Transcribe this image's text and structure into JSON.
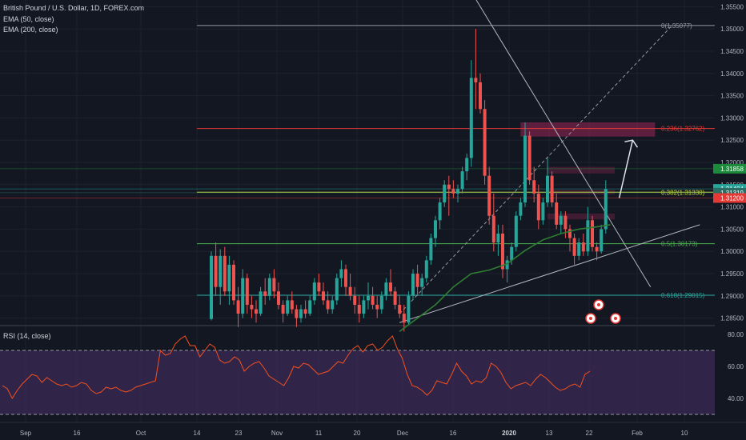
{
  "legend": {
    "symbol": "British Pound / U.S. Dollar, 1D, FOREX.com",
    "ema50": "EMA (50, close)",
    "ema200": "EMA (200, close)",
    "rsi": "RSI (14, close)"
  },
  "colors": {
    "background": "#131722",
    "up": "#26a69a",
    "down": "#ef5350",
    "ema50": "#2e7d32",
    "fib_red": "#e53935",
    "fib_green": "#4caf50",
    "fib_yellow": "#cddc39",
    "rsi_line": "#f4511e",
    "rsi_band": "#3b2a57",
    "axis_text": "#b2b5be"
  },
  "chart_data": {
    "type": "candlestick",
    "price_axis": {
      "ticks": [
        "1.35500",
        "1.35000",
        "1.34500",
        "1.34000",
        "1.33500",
        "1.33000",
        "1.32500",
        "1.32000",
        "1.31500",
        "1.31000",
        "1.30500",
        "1.30000",
        "1.29500",
        "1.29000",
        "1.28500"
      ],
      "range": [
        1.2835,
        1.3565
      ]
    },
    "x_axis": {
      "ticks": [
        "Sep",
        "16",
        "Oct",
        "14",
        "23",
        "Nov",
        "11",
        "20",
        "Dec",
        "16",
        "2020",
        "13",
        "22",
        "Feb",
        "10"
      ]
    },
    "price_badges": [
      {
        "value": "1.31858",
        "price": 1.31858,
        "color": "#1b8a3a"
      },
      {
        "value": "1.31404",
        "price": 1.31404,
        "color": "#26a69a"
      },
      {
        "value": "1.31319",
        "price": 1.31319,
        "color": "#2b6e66"
      },
      {
        "value": "1.31200",
        "price": 1.312,
        "color": "#e53935"
      }
    ],
    "fib_levels": [
      {
        "label": "0(1.35077)",
        "price": 1.35077,
        "color": "#9598a1"
      },
      {
        "label": "0.236(1.32762)",
        "price": 1.32762,
        "color": "#e53935"
      },
      {
        "label": "0.382(1.31330)",
        "price": 1.3133,
        "color": "#cddc39"
      },
      {
        "label": "0.5(1.30173)",
        "price": 1.30173,
        "color": "#4caf50"
      },
      {
        "label": "0.618(1.29015)",
        "price": 1.29015,
        "color": "#26a69a"
      }
    ],
    "candles": [
      [
        1.2848,
        1.3,
        1.2845,
        1.299
      ],
      [
        1.299,
        1.302,
        1.29,
        1.292
      ],
      [
        1.292,
        1.3005,
        1.288,
        1.299
      ],
      [
        1.299,
        1.301,
        1.29,
        1.291
      ],
      [
        1.291,
        1.299,
        1.288,
        1.297
      ],
      [
        1.297,
        1.298,
        1.288,
        1.289
      ],
      [
        1.289,
        1.292,
        1.283,
        1.286
      ],
      [
        1.286,
        1.296,
        1.285,
        1.294
      ],
      [
        1.294,
        1.295,
        1.286,
        1.288
      ],
      [
        1.288,
        1.29,
        1.285,
        1.287
      ],
      [
        1.287,
        1.289,
        1.284,
        1.286
      ],
      [
        1.286,
        1.292,
        1.2855,
        1.291
      ],
      [
        1.291,
        1.294,
        1.288,
        1.29
      ],
      [
        1.29,
        1.295,
        1.289,
        1.294
      ],
      [
        1.294,
        1.296,
        1.2895,
        1.291
      ],
      [
        1.291,
        1.293,
        1.287,
        1.288
      ],
      [
        1.288,
        1.289,
        1.284,
        1.286
      ],
      [
        1.286,
        1.29,
        1.2855,
        1.289
      ],
      [
        1.289,
        1.291,
        1.286,
        1.287
      ],
      [
        1.287,
        1.288,
        1.283,
        1.285
      ],
      [
        1.285,
        1.288,
        1.284,
        1.287
      ],
      [
        1.287,
        1.289,
        1.285,
        1.286
      ],
      [
        1.286,
        1.29,
        1.2855,
        1.289
      ],
      [
        1.289,
        1.294,
        1.288,
        1.293
      ],
      [
        1.293,
        1.295,
        1.29,
        1.291
      ],
      [
        1.291,
        1.293,
        1.288,
        1.289
      ],
      [
        1.289,
        1.291,
        1.286,
        1.287
      ],
      [
        1.287,
        1.29,
        1.286,
        1.289
      ],
      [
        1.289,
        1.295,
        1.288,
        1.294
      ],
      [
        1.294,
        1.298,
        1.292,
        1.296
      ],
      [
        1.296,
        1.297,
        1.29,
        1.292
      ],
      [
        1.292,
        1.295,
        1.289,
        1.29
      ],
      [
        1.29,
        1.292,
        1.286,
        1.288
      ],
      [
        1.288,
        1.29,
        1.284,
        1.286
      ],
      [
        1.286,
        1.29,
        1.285,
        1.289
      ],
      [
        1.289,
        1.293,
        1.287,
        1.29
      ],
      [
        1.29,
        1.292,
        1.287,
        1.288
      ],
      [
        1.288,
        1.29,
        1.285,
        1.287
      ],
      [
        1.287,
        1.291,
        1.286,
        1.29
      ],
      [
        1.29,
        1.294,
        1.289,
        1.293
      ],
      [
        1.293,
        1.296,
        1.29,
        1.291
      ],
      [
        1.291,
        1.292,
        1.287,
        1.288
      ],
      [
        1.288,
        1.29,
        1.285,
        1.286
      ],
      [
        1.286,
        1.288,
        1.282,
        1.284
      ],
      [
        1.284,
        1.291,
        1.2835,
        1.29
      ],
      [
        1.29,
        1.296,
        1.289,
        1.295
      ],
      [
        1.295,
        1.297,
        1.29,
        1.292
      ],
      [
        1.292,
        1.295,
        1.29,
        1.294
      ],
      [
        1.294,
        1.299,
        1.293,
        1.298
      ],
      [
        1.298,
        1.304,
        1.297,
        1.303
      ],
      [
        1.303,
        1.308,
        1.301,
        1.307
      ],
      [
        1.307,
        1.312,
        1.305,
        1.311
      ],
      [
        1.311,
        1.316,
        1.31,
        1.315
      ],
      [
        1.315,
        1.317,
        1.308,
        1.314
      ],
      [
        1.314,
        1.316,
        1.312,
        1.313
      ],
      [
        1.313,
        1.315,
        1.311,
        1.314
      ],
      [
        1.314,
        1.319,
        1.313,
        1.318
      ],
      [
        1.318,
        1.322,
        1.316,
        1.321
      ],
      [
        1.321,
        1.343,
        1.319,
        1.339
      ],
      [
        1.339,
        1.35,
        1.332,
        1.338
      ],
      [
        1.338,
        1.34,
        1.331,
        1.332
      ],
      [
        1.332,
        1.334,
        1.315,
        1.317
      ],
      [
        1.317,
        1.319,
        1.306,
        1.308
      ],
      [
        1.308,
        1.313,
        1.3,
        1.302
      ],
      [
        1.302,
        1.306,
        1.299,
        1.304
      ],
      [
        1.304,
        1.306,
        1.294,
        1.296
      ],
      [
        1.296,
        1.299,
        1.293,
        1.298
      ],
      [
        1.298,
        1.302,
        1.297,
        1.301
      ],
      [
        1.301,
        1.309,
        1.3,
        1.308
      ],
      [
        1.308,
        1.312,
        1.307,
        1.311
      ],
      [
        1.311,
        1.329,
        1.31,
        1.326
      ],
      [
        1.326,
        1.327,
        1.315,
        1.316
      ],
      [
        1.316,
        1.319,
        1.311,
        1.313
      ],
      [
        1.313,
        1.315,
        1.305,
        1.307
      ],
      [
        1.307,
        1.312,
        1.306,
        1.311
      ],
      [
        1.311,
        1.321,
        1.31,
        1.317
      ],
      [
        1.317,
        1.318,
        1.31,
        1.311
      ],
      [
        1.311,
        1.313,
        1.305,
        1.306
      ],
      [
        1.306,
        1.309,
        1.304,
        1.308
      ],
      [
        1.308,
        1.309,
        1.303,
        1.305
      ],
      [
        1.305,
        1.306,
        1.3,
        1.303
      ],
      [
        1.303,
        1.304,
        1.297,
        1.299
      ],
      [
        1.299,
        1.303,
        1.298,
        1.302
      ],
      [
        1.302,
        1.304,
        1.299,
        1.3
      ],
      [
        1.3,
        1.31,
        1.299,
        1.307
      ],
      [
        1.307,
        1.308,
        1.3,
        1.301
      ],
      [
        1.301,
        1.302,
        1.298,
        1.3
      ],
      [
        1.3,
        1.306,
        1.2995,
        1.305
      ],
      [
        1.305,
        1.316,
        1.304,
        1.314
      ]
    ],
    "ema50": [
      [
        42,
        1.282
      ],
      [
        46,
        1.285
      ],
      [
        50,
        1.288
      ],
      [
        54,
        1.292
      ],
      [
        58,
        1.295
      ],
      [
        62,
        1.2958
      ],
      [
        66,
        1.2972
      ],
      [
        70,
        1.3002
      ],
      [
        74,
        1.3026
      ],
      [
        78,
        1.304
      ],
      [
        82,
        1.305
      ],
      [
        86,
        1.3055
      ],
      [
        89,
        1.306
      ]
    ],
    "trendlines": [
      {
        "from": [
          57,
          1.36
        ],
        "to": [
          98,
          1.292
        ],
        "color": "#b2b5be"
      },
      {
        "from": [
          42,
          1.284
        ],
        "to": [
          109,
          1.306
        ],
        "color": "#b2b5be"
      }
    ],
    "resistance_zones": [
      {
        "x0": 69,
        "x1": 99,
        "y_top": 1.329,
        "y_bottom": 1.3258
      },
      {
        "x0": 75,
        "x1": 90,
        "y_top": 1.319,
        "y_bottom": 1.3175
      },
      {
        "x0": 75,
        "x1": 90,
        "y_top": 1.3138,
        "y_bottom": 1.3128
      },
      {
        "x0": 75,
        "x1": 90,
        "y_top": 1.3085,
        "y_bottom": 1.3072
      }
    ],
    "projection_arrow": {
      "from": [
        91,
        1.312
      ],
      "to": [
        94,
        1.325
      ],
      "color": "#e0e3eb"
    },
    "rsi": {
      "ticks": [
        "80.00",
        "60.00",
        "40.00"
      ],
      "range": [
        25,
        85
      ],
      "upper": 70,
      "lower": 30,
      "values": [
        48,
        46,
        40,
        45,
        49,
        52,
        55,
        54,
        50,
        53,
        51,
        49,
        48,
        49,
        47,
        48,
        50,
        49,
        45,
        43,
        44,
        47,
        46,
        47,
        45,
        44,
        45,
        47,
        48,
        49,
        50,
        51,
        70,
        67,
        68,
        74,
        77,
        79,
        73,
        73,
        66,
        70,
        74,
        72,
        64,
        62,
        63,
        66,
        64,
        57,
        60,
        62,
        63,
        59,
        54,
        52,
        50,
        48,
        53,
        60,
        59,
        62,
        61,
        58,
        55,
        56,
        57,
        60,
        63,
        62,
        67,
        71,
        73,
        69,
        73,
        74,
        70,
        72,
        76,
        79,
        71,
        65,
        55,
        48,
        47,
        45,
        42,
        45,
        51,
        50,
        49,
        55,
        62,
        57,
        54,
        49,
        51,
        50,
        53,
        62,
        60,
        56,
        50,
        46,
        48,
        49,
        50,
        48,
        52,
        55,
        53,
        50,
        47,
        45,
        46,
        48,
        49,
        47,
        55,
        57
      ]
    }
  }
}
